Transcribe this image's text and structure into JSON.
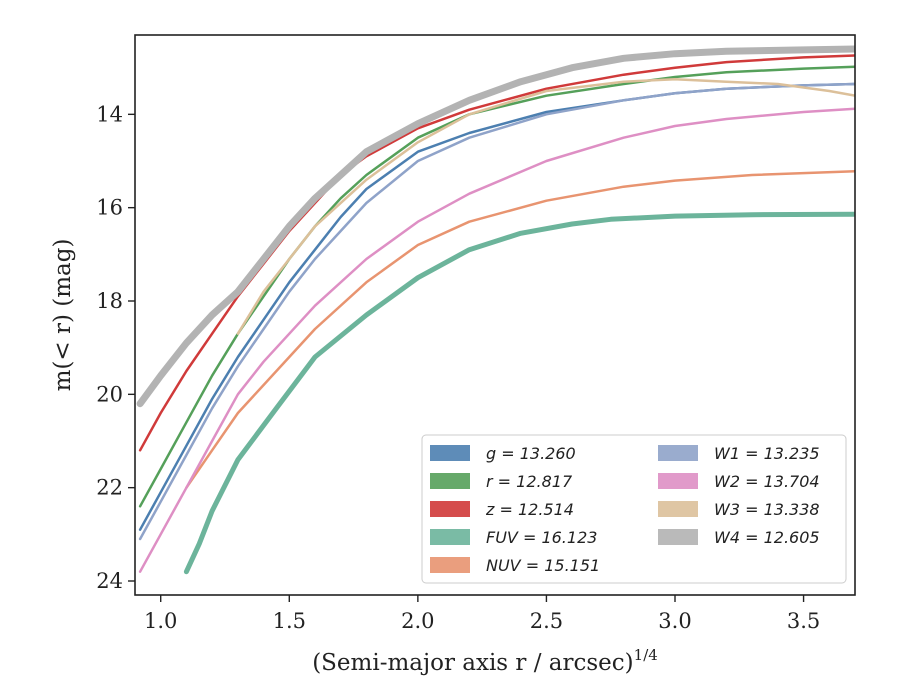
{
  "chart_data": {
    "type": "line",
    "xlabel": "(Semi-major axis r / arcsec)",
    "xlabel_sup": "1/4",
    "ylabel": "m(< r) (mag)",
    "xlim": [
      0.9,
      3.7
    ],
    "ylim": [
      24.3,
      12.3
    ],
    "y_inverted": true,
    "xticks": [
      1.0,
      1.5,
      2.0,
      2.5,
      3.0,
      3.5
    ],
    "xtick_labels": [
      "1.0",
      "1.5",
      "2.0",
      "2.5",
      "3.0",
      "3.5"
    ],
    "yticks": [
      14,
      16,
      18,
      20,
      22,
      24
    ],
    "ytick_labels": [
      "14",
      "16",
      "18",
      "20",
      "22",
      "24"
    ],
    "grid": false,
    "legend_position": "lower-right",
    "series": [
      {
        "name": "g = 13.260",
        "color": "#4c7fb0",
        "x": [
          0.92,
          1.0,
          1.1,
          1.2,
          1.3,
          1.4,
          1.5,
          1.6,
          1.7,
          1.8,
          2.0,
          2.2,
          2.5,
          2.8,
          3.0,
          3.2,
          3.5,
          3.7
        ],
        "y": [
          22.9,
          22.1,
          21.1,
          20.1,
          19.2,
          18.4,
          17.6,
          16.9,
          16.2,
          15.6,
          14.8,
          14.4,
          13.95,
          13.7,
          13.55,
          13.45,
          13.38,
          13.35
        ]
      },
      {
        "name": "r = 12.817",
        "color": "#55a05a",
        "x": [
          0.92,
          1.0,
          1.1,
          1.2,
          1.3,
          1.4,
          1.5,
          1.6,
          1.7,
          1.8,
          2.0,
          2.2,
          2.5,
          2.8,
          3.0,
          3.2,
          3.5,
          3.7
        ],
        "y": [
          22.4,
          21.6,
          20.6,
          19.6,
          18.7,
          17.9,
          17.1,
          16.4,
          15.8,
          15.3,
          14.5,
          14.0,
          13.6,
          13.35,
          13.2,
          13.1,
          13.02,
          12.98
        ]
      },
      {
        "name": "z = 12.514",
        "color": "#d03a3a",
        "x": [
          0.92,
          1.0,
          1.1,
          1.2,
          1.3,
          1.4,
          1.5,
          1.6,
          1.7,
          1.8,
          2.0,
          2.2,
          2.5,
          2.8,
          3.0,
          3.2,
          3.5,
          3.7
        ],
        "y": [
          21.2,
          20.4,
          19.5,
          18.7,
          17.9,
          17.2,
          16.5,
          15.9,
          15.3,
          14.9,
          14.3,
          13.9,
          13.45,
          13.15,
          13.0,
          12.88,
          12.78,
          12.74
        ]
      },
      {
        "name": "FUV = 16.123",
        "color": "#6cb49b",
        "x": [
          1.1,
          1.15,
          1.2,
          1.3,
          1.45,
          1.6,
          1.8,
          2.0,
          2.2,
          2.4,
          2.6,
          2.75,
          3.0,
          3.3,
          3.7
        ],
        "y": [
          23.8,
          23.2,
          22.5,
          21.4,
          20.3,
          19.2,
          18.3,
          17.5,
          16.9,
          16.55,
          16.35,
          16.25,
          16.18,
          16.15,
          16.14
        ]
      },
      {
        "name": "NUV = 15.151",
        "color": "#e89470",
        "x": [
          1.1,
          1.2,
          1.3,
          1.4,
          1.5,
          1.6,
          1.8,
          2.0,
          2.2,
          2.5,
          2.8,
          3.0,
          3.3,
          3.7
        ],
        "y": [
          22.0,
          21.2,
          20.4,
          19.8,
          19.2,
          18.6,
          17.6,
          16.8,
          16.3,
          15.85,
          15.55,
          15.42,
          15.3,
          15.22
        ]
      },
      {
        "name": "W1 = 13.235",
        "color": "#8fa3c9",
        "x": [
          0.92,
          1.0,
          1.1,
          1.2,
          1.3,
          1.4,
          1.5,
          1.6,
          1.7,
          1.8,
          2.0,
          2.2,
          2.5,
          2.8,
          3.0,
          3.2,
          3.5,
          3.7
        ],
        "y": [
          23.1,
          22.3,
          21.3,
          20.3,
          19.4,
          18.6,
          17.8,
          17.1,
          16.5,
          15.9,
          15.0,
          14.5,
          14.0,
          13.7,
          13.55,
          13.45,
          13.38,
          13.35
        ]
      },
      {
        "name": "W2 = 13.704",
        "color": "#de8fc4",
        "x": [
          0.92,
          1.0,
          1.1,
          1.2,
          1.3,
          1.4,
          1.5,
          1.6,
          1.8,
          2.0,
          2.2,
          2.5,
          2.8,
          3.0,
          3.2,
          3.5,
          3.7
        ],
        "y": [
          23.8,
          23.0,
          22.0,
          21.0,
          20.0,
          19.3,
          18.7,
          18.1,
          17.1,
          16.3,
          15.7,
          15.0,
          14.5,
          14.25,
          14.1,
          13.95,
          13.88
        ]
      },
      {
        "name": "W3 = 13.338",
        "color": "#dcc09a",
        "x": [
          1.3,
          1.4,
          1.5,
          1.6,
          1.8,
          2.0,
          2.2,
          2.5,
          2.8,
          3.0,
          3.2,
          3.4,
          3.6,
          3.7
        ],
        "y": [
          18.7,
          17.8,
          17.1,
          16.4,
          15.4,
          14.6,
          14.0,
          13.5,
          13.3,
          13.25,
          13.3,
          13.35,
          13.5,
          13.6
        ]
      },
      {
        "name": "W4 = 12.605",
        "color": "#b3b3b3",
        "x": [
          0.92,
          1.0,
          1.1,
          1.2,
          1.3,
          1.4,
          1.5,
          1.6,
          1.8,
          2.0,
          2.2,
          2.4,
          2.6,
          2.8,
          3.0,
          3.2,
          3.5,
          3.7
        ],
        "y": [
          20.2,
          19.6,
          18.9,
          18.3,
          17.8,
          17.1,
          16.4,
          15.8,
          14.8,
          14.2,
          13.7,
          13.3,
          13.0,
          12.8,
          12.7,
          12.65,
          12.62,
          12.6
        ]
      }
    ]
  }
}
